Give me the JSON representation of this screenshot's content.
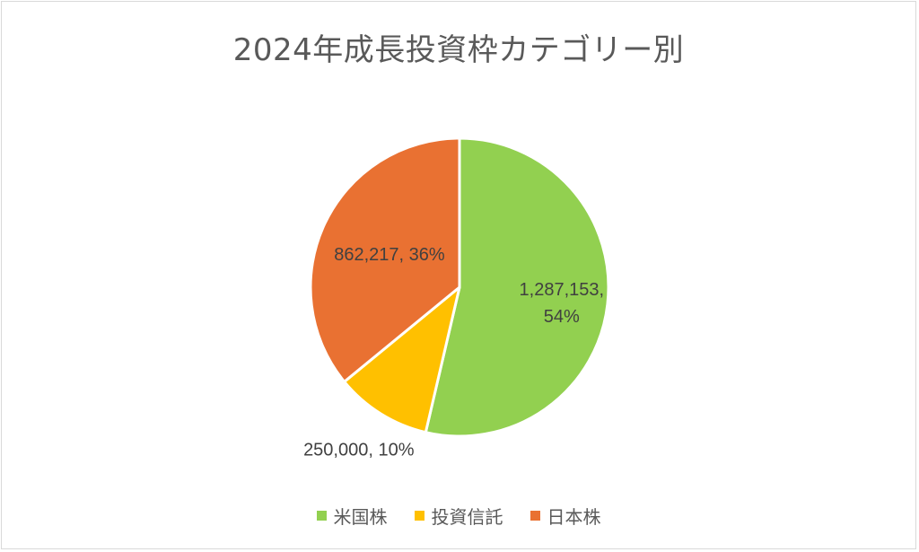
{
  "chart_data": {
    "type": "pie",
    "title": "2024年成長投資枠カテゴリー別",
    "categories": [
      "米国株",
      "投資信託",
      "日本株"
    ],
    "values": [
      1287153,
      250000,
      862217
    ],
    "percent_labels": [
      "54%",
      "10%",
      "36%"
    ],
    "value_labels": [
      "1,287,153,",
      "250,000,",
      "862,217,"
    ],
    "colors": [
      "#92d050",
      "#ffc000",
      "#e97132"
    ],
    "legend_position": "bottom"
  }
}
